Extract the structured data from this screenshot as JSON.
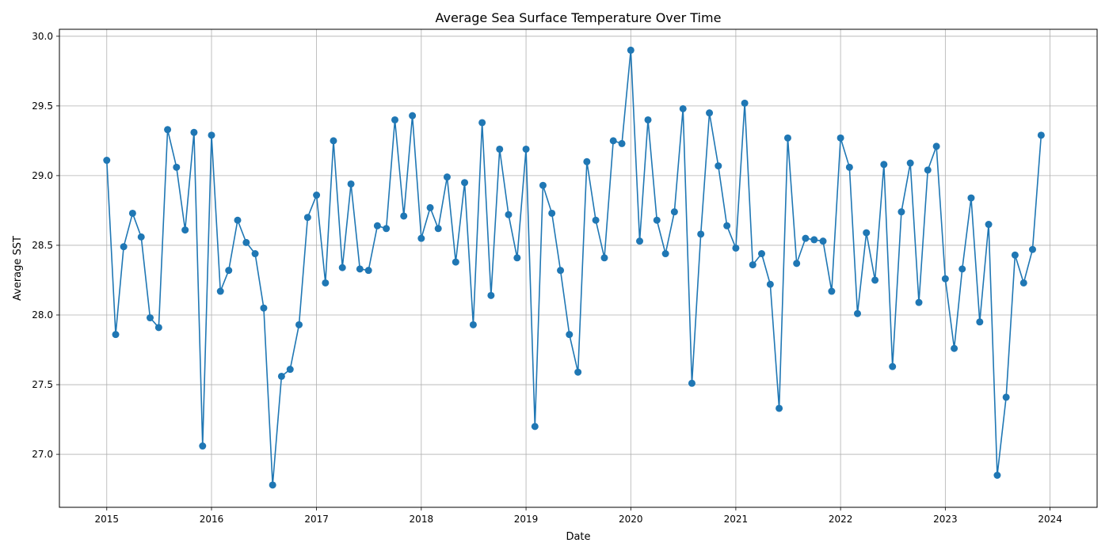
{
  "chart_data": {
    "type": "line",
    "title": "Average Sea Surface Temperature Over Time",
    "xlabel": "Date",
    "ylabel": "Average SST",
    "grid": true,
    "marker": "circle",
    "color": "#1f77b4",
    "xlim": [
      "2014-07-20",
      "2024-06-13"
    ],
    "ylim": [
      26.62,
      30.05
    ],
    "x_ticks": [
      "2015",
      "2016",
      "2017",
      "2018",
      "2019",
      "2020",
      "2021",
      "2022",
      "2023",
      "2024"
    ],
    "y_ticks": [
      "27.0",
      "27.5",
      "28.0",
      "28.5",
      "29.0",
      "29.5",
      "30.0"
    ],
    "series": [
      {
        "x": [
          "2015-01",
          "2015-02",
          "2015-03",
          "2015-04",
          "2015-05",
          "2015-06",
          "2015-07",
          "2015-08",
          "2015-09",
          "2015-10",
          "2015-11",
          "2015-12",
          "2016-01",
          "2016-02",
          "2016-03",
          "2016-04",
          "2016-05",
          "2016-06",
          "2016-07",
          "2016-08",
          "2016-09",
          "2016-10",
          "2016-11",
          "2016-12",
          "2017-01",
          "2017-02",
          "2017-03",
          "2017-04",
          "2017-05",
          "2017-06",
          "2017-07",
          "2017-08",
          "2017-09",
          "2017-10",
          "2017-11",
          "2017-12",
          "2018-01",
          "2018-02",
          "2018-03",
          "2018-04",
          "2018-05",
          "2018-06",
          "2018-07",
          "2018-08",
          "2018-09",
          "2018-10",
          "2018-11",
          "2018-12",
          "2019-01",
          "2019-02",
          "2019-03",
          "2019-04",
          "2019-05",
          "2019-06",
          "2019-07",
          "2019-08",
          "2019-09",
          "2019-10",
          "2019-11",
          "2019-12",
          "2020-01",
          "2020-02",
          "2020-03",
          "2020-04",
          "2020-05",
          "2020-06",
          "2020-07",
          "2020-08",
          "2020-09",
          "2020-10",
          "2020-11",
          "2020-12",
          "2021-01",
          "2021-02",
          "2021-03",
          "2021-04",
          "2021-05",
          "2021-06",
          "2021-07",
          "2021-08",
          "2021-09",
          "2021-10",
          "2021-11",
          "2021-12",
          "2022-01",
          "2022-02",
          "2022-03",
          "2022-04",
          "2022-05",
          "2022-06",
          "2022-07",
          "2022-08",
          "2022-09",
          "2022-10",
          "2022-11",
          "2022-12",
          "2023-01",
          "2023-02",
          "2023-03",
          "2023-04",
          "2023-05",
          "2023-06",
          "2023-07",
          "2023-08",
          "2023-09",
          "2023-10",
          "2023-11",
          "2023-12"
        ],
        "y": [
          29.11,
          27.86,
          28.49,
          28.73,
          28.56,
          27.98,
          27.91,
          29.33,
          29.06,
          28.61,
          29.31,
          27.06,
          29.29,
          28.17,
          28.32,
          28.68,
          28.52,
          28.44,
          28.05,
          26.78,
          27.56,
          27.61,
          27.93,
          28.7,
          28.86,
          28.23,
          29.25,
          28.34,
          28.94,
          28.33,
          28.32,
          28.64,
          28.62,
          29.4,
          28.71,
          29.43,
          28.55,
          28.77,
          28.62,
          28.99,
          28.38,
          28.95,
          27.93,
          29.38,
          28.14,
          29.19,
          28.72,
          28.41,
          29.19,
          27.2,
          28.93,
          28.73,
          28.32,
          27.86,
          27.59,
          29.1,
          28.68,
          28.41,
          29.25,
          29.23,
          29.9,
          28.53,
          29.4,
          28.68,
          28.44,
          28.74,
          29.48,
          27.51,
          28.58,
          29.45,
          29.07,
          28.64,
          28.48,
          29.52,
          28.36,
          28.44,
          28.22,
          27.33,
          29.27,
          28.37,
          28.55,
          28.54,
          28.53,
          28.17,
          29.27,
          29.06,
          28.01,
          28.59,
          28.25,
          29.08,
          27.63,
          28.74,
          29.09,
          28.09,
          29.04,
          29.21,
          28.26,
          27.76,
          28.33,
          28.84,
          27.95,
          28.65,
          26.85,
          27.41,
          28.43,
          28.23,
          28.47,
          29.29
        ]
      }
    ]
  }
}
